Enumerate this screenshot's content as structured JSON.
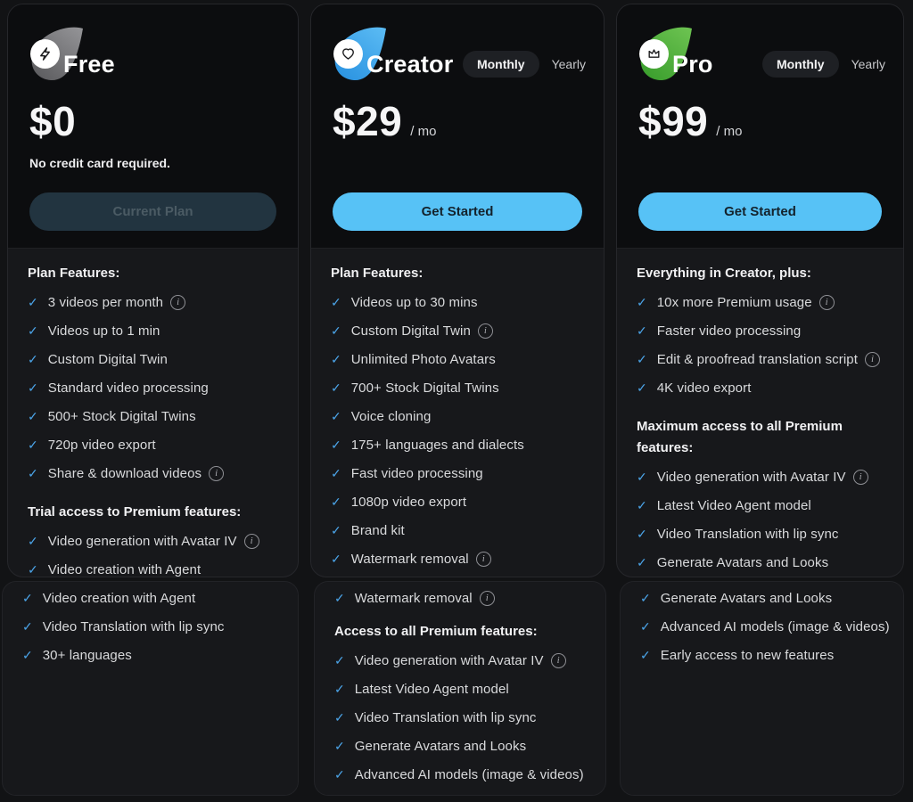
{
  "page": {
    "background": "#121315"
  },
  "billing": {
    "monthly_label": "Monthly",
    "yearly_label": "Yearly",
    "selected": "Monthly"
  },
  "glyphs": {
    "check": "✓",
    "info": "i"
  },
  "colors": {
    "accent_blue": "#57c2f6",
    "check_blue": "#4ba4e8",
    "card_header_bg": "#0c0d0f",
    "card_body_bg": "#17181b",
    "current_plan_bg": "#223440"
  },
  "plans": [
    {
      "name": "Free",
      "icon": "bolt-icon",
      "blob_gradient": [
        "#959598",
        "#5f5f62"
      ],
      "price": "$0",
      "period": "",
      "tagline": "No credit card required.",
      "cta": {
        "label": "Current Plan",
        "variant": "current"
      },
      "show_billing_toggle": false,
      "top_sections": [
        {
          "heading": "Plan Features:",
          "items": [
            {
              "text": "3 videos per month",
              "info": true
            },
            {
              "text": "Videos up to 1 min",
              "info": false
            },
            {
              "text": "Custom Digital Twin",
              "info": false
            },
            {
              "text": "Standard video processing",
              "info": false
            },
            {
              "text": "500+ Stock Digital Twins",
              "info": false
            },
            {
              "text": "720p video export",
              "info": false
            },
            {
              "text": "Share & download videos",
              "info": true
            }
          ]
        },
        {
          "heading": "Trial access to Premium features:",
          "items": [
            {
              "text": "Video generation with Avatar IV",
              "info": true
            },
            {
              "text": "Video creation with Agent",
              "info": false
            }
          ]
        }
      ],
      "bottom_sections": [
        {
          "heading": "",
          "items": [
            {
              "text": "Video creation with Agent",
              "info": false
            },
            {
              "text": "Video Translation with lip sync",
              "info": false
            },
            {
              "text": "30+ languages",
              "info": false
            }
          ]
        }
      ]
    },
    {
      "name": "Creator",
      "icon": "heart-icon",
      "blob_gradient": [
        "#5cbcf4",
        "#2d95e2"
      ],
      "price": "$29",
      "period": "/ mo",
      "tagline": "",
      "cta": {
        "label": "Get Started",
        "variant": "primary"
      },
      "show_billing_toggle": true,
      "top_sections": [
        {
          "heading": "Plan Features:",
          "items": [
            {
              "text": "Videos up to 30 mins",
              "info": false
            },
            {
              "text": "Custom Digital Twin",
              "info": true
            },
            {
              "text": "Unlimited Photo Avatars",
              "info": false
            },
            {
              "text": "700+ Stock Digital Twins",
              "info": false
            },
            {
              "text": "Voice cloning",
              "info": false
            },
            {
              "text": "175+ languages and dialects",
              "info": false
            },
            {
              "text": "Fast video processing",
              "info": false
            },
            {
              "text": "1080p video export",
              "info": false
            },
            {
              "text": "Brand kit",
              "info": false
            },
            {
              "text": "Watermark removal",
              "info": true
            }
          ]
        }
      ],
      "bottom_sections": [
        {
          "heading": "",
          "items": [
            {
              "text": "Watermark removal",
              "info": true
            }
          ]
        },
        {
          "heading": "Access to all Premium features:",
          "items": [
            {
              "text": "Video generation with Avatar IV",
              "info": true
            },
            {
              "text": "Latest Video Agent model",
              "info": false
            },
            {
              "text": "Video Translation with lip sync",
              "info": false
            },
            {
              "text": "Generate Avatars and Looks",
              "info": false
            },
            {
              "text": "Advanced AI models (image & videos)",
              "info": false
            }
          ]
        }
      ]
    },
    {
      "name": "Pro",
      "icon": "crown-icon",
      "blob_gradient": [
        "#6ec452",
        "#3da02f"
      ],
      "price": "$99",
      "period": "/ mo",
      "tagline": "",
      "cta": {
        "label": "Get Started",
        "variant": "primary"
      },
      "show_billing_toggle": true,
      "top_sections": [
        {
          "heading": "Everything in Creator, plus:",
          "items": [
            {
              "text": "10x more Premium usage",
              "info": true
            },
            {
              "text": "Faster video processing",
              "info": false
            },
            {
              "text": "Edit & proofread translation script",
              "info": true
            },
            {
              "text": "4K video export",
              "info": false
            }
          ]
        },
        {
          "heading": "Maximum access to all Premium features:",
          "items": [
            {
              "text": "Video generation with Avatar IV",
              "info": true
            },
            {
              "text": "Latest Video Agent model",
              "info": false
            },
            {
              "text": "Video Translation with lip sync",
              "info": false
            },
            {
              "text": "Generate Avatars and Looks",
              "info": false
            }
          ]
        }
      ],
      "bottom_sections": [
        {
          "heading": "",
          "items": [
            {
              "text": "Generate Avatars and Looks",
              "info": false
            },
            {
              "text": "Advanced AI models (image & videos)",
              "info": false
            },
            {
              "text": "Early access to new features",
              "info": false
            }
          ]
        }
      ]
    }
  ]
}
